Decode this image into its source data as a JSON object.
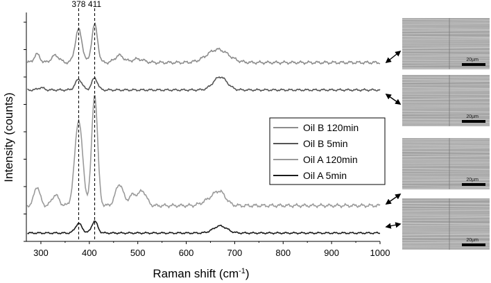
{
  "chart_data": {
    "type": "line",
    "title": "",
    "xlabel_main": "Raman shift (cm",
    "xlabel_sup": "-1",
    "xlabel_close": ")",
    "ylabel": "Intensity (counts)",
    "xlim": [
      270,
      1000
    ],
    "x_ticks": [
      300,
      400,
      500,
      600,
      700,
      800,
      900,
      1000
    ],
    "grid": false,
    "legend_position": "center-right",
    "reference_lines": [
      {
        "x": 378,
        "label": "378"
      },
      {
        "x": 411,
        "label": "411"
      }
    ],
    "series": [
      {
        "name": "Oil B 120min",
        "color": "#8c8c8c",
        "baseline": 7.5,
        "noise": 0.07,
        "peaks": [
          [
            292,
            0.35,
            6
          ],
          [
            330,
            0.3,
            8
          ],
          [
            378,
            1.4,
            7
          ],
          [
            411,
            1.6,
            6
          ],
          [
            462,
            0.3,
            9
          ],
          [
            500,
            0.15,
            12
          ],
          [
            665,
            0.55,
            22
          ]
        ]
      },
      {
        "name": "Oil B 5min",
        "color": "#555555",
        "baseline": 6.35,
        "noise": 0.05,
        "peaks": [
          [
            300,
            0.1,
            6
          ],
          [
            378,
            0.45,
            7
          ],
          [
            411,
            0.5,
            6
          ],
          [
            670,
            0.55,
            14
          ]
        ]
      },
      {
        "name": "Oil A 120min",
        "color": "#9a9a9a",
        "baseline": 1.5,
        "noise": 0.08,
        "peaks": [
          [
            292,
            0.8,
            6
          ],
          [
            330,
            0.45,
            7
          ],
          [
            378,
            3.6,
            8
          ],
          [
            411,
            4.7,
            6
          ],
          [
            462,
            0.9,
            8
          ],
          [
            490,
            0.45,
            8
          ],
          [
            510,
            0.6,
            8
          ],
          [
            650,
            0.25,
            15
          ],
          [
            670,
            0.5,
            12
          ]
        ]
      },
      {
        "name": "Oil A 5min",
        "color": "#1a1a1a",
        "baseline": 0.35,
        "noise": 0.04,
        "peaks": [
          [
            378,
            0.4,
            7
          ],
          [
            411,
            0.5,
            6
          ],
          [
            670,
            0.3,
            14
          ]
        ]
      }
    ]
  },
  "micrographs": [
    {
      "label": "20µm",
      "series": "Oil B 120min"
    },
    {
      "label": "20µm",
      "series": "Oil B 5min"
    },
    {
      "label": "20µm",
      "series": "Oil A 120min"
    },
    {
      "label": "20µm",
      "series": "Oil A 5min"
    }
  ]
}
